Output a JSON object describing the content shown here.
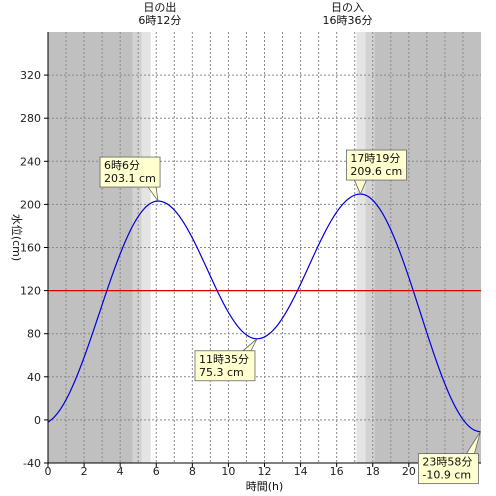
{
  "chart_data": {
    "type": "line",
    "xlabel": "時間(h)",
    "ylabel": "水位(cm)",
    "xlim": [
      0,
      24
    ],
    "ylim": [
      -40,
      360
    ],
    "x_ticks": [
      0,
      2,
      4,
      6,
      8,
      10,
      12,
      14,
      16,
      18,
      20,
      22
    ],
    "y_ticks": [
      -40,
      0,
      40,
      80,
      120,
      160,
      200,
      240,
      280,
      320
    ],
    "grid": true,
    "sunrise": {
      "label": "日の出",
      "time_label": "6時12分",
      "hour": 6.2
    },
    "sunset": {
      "label": "日の入",
      "time_label": "16時36分",
      "hour": 16.6
    },
    "twilight_hours": {
      "morning": [
        4.7,
        5.7
      ],
      "evening": [
        17.1,
        18.1
      ]
    },
    "reference_line": {
      "value": 120,
      "color": "#dd0000"
    },
    "series": [
      {
        "color": "#0000dd",
        "extrema": [
          {
            "hour": 6.1,
            "value": 203.1,
            "label": [
              "6時6分",
              "203.1 cm"
            ]
          },
          {
            "hour": 11.583,
            "value": 75.3,
            "label": [
              "11時35分",
              "75.3 cm"
            ]
          },
          {
            "hour": 17.317,
            "value": 209.6,
            "label": [
              "17時19分",
              "209.6 cm"
            ]
          },
          {
            "hour": 23.967,
            "value": -10.9,
            "label": [
              "23時58分",
              "-10.9 cm"
            ]
          }
        ],
        "start": {
          "hour": 0,
          "value": -2
        }
      }
    ]
  }
}
